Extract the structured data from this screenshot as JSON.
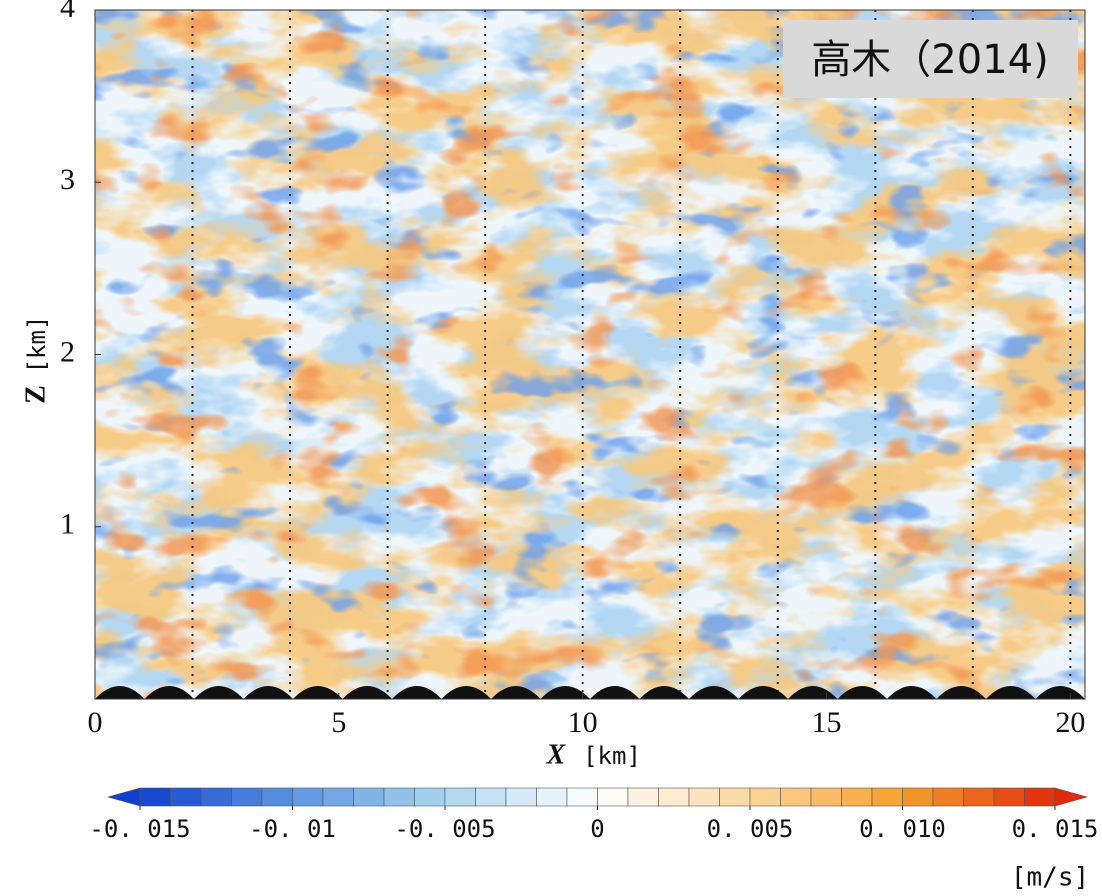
{
  "chart_data": {
    "type": "heatmap",
    "badge": "高木（2014)",
    "x_label": "X",
    "x_unit": "[km]",
    "y_label": "Z",
    "y_unit": "[km]",
    "xlim": [
      0,
      20.3
    ],
    "ylim": [
      0,
      4
    ],
    "xticks": [
      0,
      5,
      10,
      15,
      20
    ],
    "yticks": [
      1,
      2,
      3,
      4
    ],
    "xgrid": [
      2,
      4,
      6,
      8,
      10,
      12,
      14,
      16,
      18,
      20
    ],
    "colorbar": {
      "unit": "[m/s]",
      "clim": [
        -0.015,
        0.015
      ],
      "ticks": [
        {
          "value": -0.015,
          "label": "-0. 015"
        },
        {
          "value": -0.01,
          "label": "-0. 01"
        },
        {
          "value": -0.005,
          "label": "-0. 005"
        },
        0,
        {
          "value": 0.005,
          "label": "0. 005"
        },
        {
          "value": 0.01,
          "label": "0. 010"
        },
        {
          "value": 0.015,
          "label": "0. 015"
        }
      ],
      "colors": [
        "#1040d0",
        "#5b95e0",
        "#a9d5ee",
        "#ffffff",
        "#fcd7a0",
        "#f5a02c",
        "#e02a0c"
      ]
    }
  }
}
